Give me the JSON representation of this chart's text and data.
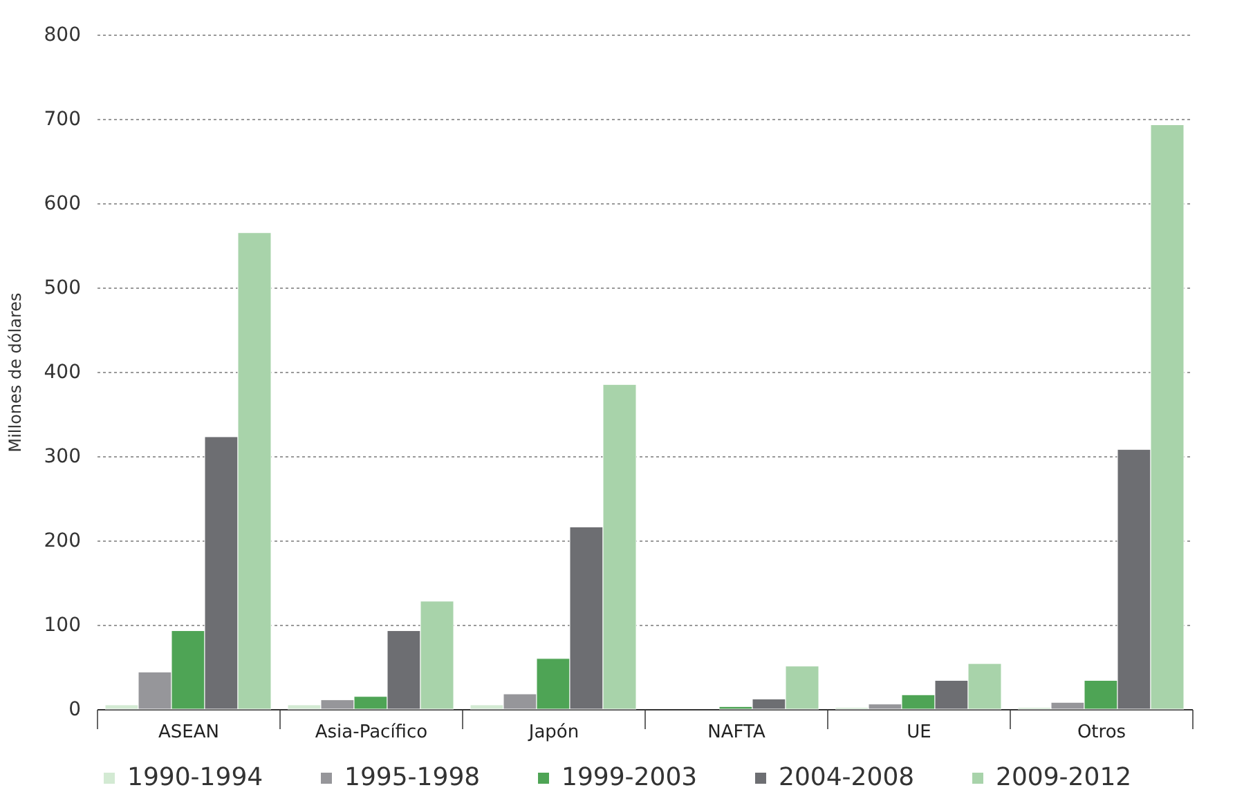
{
  "chart_data": {
    "type": "bar",
    "ylabel": "Millones de dólares",
    "categories": [
      "ASEAN",
      "Asia-Pacífico",
      "Japón",
      "NAFTA",
      "UE",
      "Otros"
    ],
    "series": [
      {
        "name": "1990-1994",
        "color": "#d3ead3",
        "values": [
          5,
          5,
          5,
          null,
          2,
          2
        ]
      },
      {
        "name": "1995-1998",
        "color": "#96969a",
        "values": [
          44,
          11,
          18,
          null,
          6,
          8
        ]
      },
      {
        "name": "1999-2003",
        "color": "#4ea455",
        "values": [
          93,
          15,
          60,
          3,
          17,
          34
        ]
      },
      {
        "name": "2004-2008",
        "color": "#6d6e72",
        "values": [
          323,
          93,
          216,
          12,
          34,
          308
        ]
      },
      {
        "name": "2009-2012",
        "color": "#a8d3aa",
        "values": [
          565,
          128,
          385,
          51,
          54,
          693
        ]
      }
    ],
    "ylim": [
      0,
      800
    ],
    "yticks": [
      0,
      100,
      200,
      300,
      400,
      500,
      600,
      700,
      800
    ],
    "grid": "y",
    "legend": "bottom"
  }
}
